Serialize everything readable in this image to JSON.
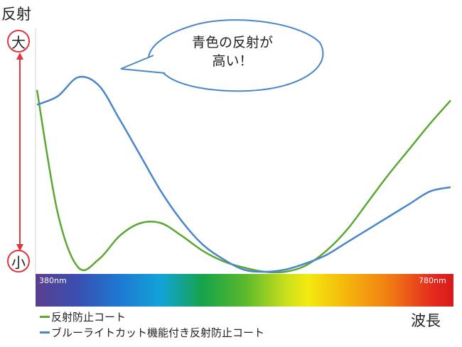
{
  "chart_data": {
    "type": "line",
    "title": "",
    "ylabel": "反射",
    "xlabel": "波長",
    "y_scale_high": "大",
    "y_scale_low": "小",
    "x_range_labels": [
      "380nm",
      "780nm"
    ],
    "x": [
      380,
      400,
      420,
      440,
      460,
      480,
      500,
      520,
      540,
      560,
      580,
      600,
      620,
      640,
      660,
      680,
      700,
      720,
      740,
      760,
      780
    ],
    "ylim": [
      0,
      1
    ],
    "series": [
      {
        "name": "反射防止コート",
        "color": "#5aa832",
        "values": [
          0.86,
          0.28,
          0.02,
          0.06,
          0.17,
          0.23,
          0.23,
          0.17,
          0.1,
          0.05,
          0.02,
          0.0,
          0.0,
          0.03,
          0.1,
          0.2,
          0.33,
          0.46,
          0.58,
          0.7,
          0.81
        ]
      },
      {
        "name": "ブルーライトカット機能付き反射防止コート",
        "color": "#4a86c8",
        "values": [
          0.79,
          0.83,
          0.92,
          0.88,
          0.72,
          0.55,
          0.38,
          0.24,
          0.13,
          0.06,
          0.01,
          0.0,
          0.01,
          0.04,
          0.08,
          0.14,
          0.2,
          0.26,
          0.32,
          0.38,
          0.4
        ]
      }
    ],
    "annotations": [
      {
        "text": [
          "青色の反射が",
          "高い！"
        ],
        "points_to": "ブルーライトカット機能付き反射防止コート"
      }
    ]
  }
}
